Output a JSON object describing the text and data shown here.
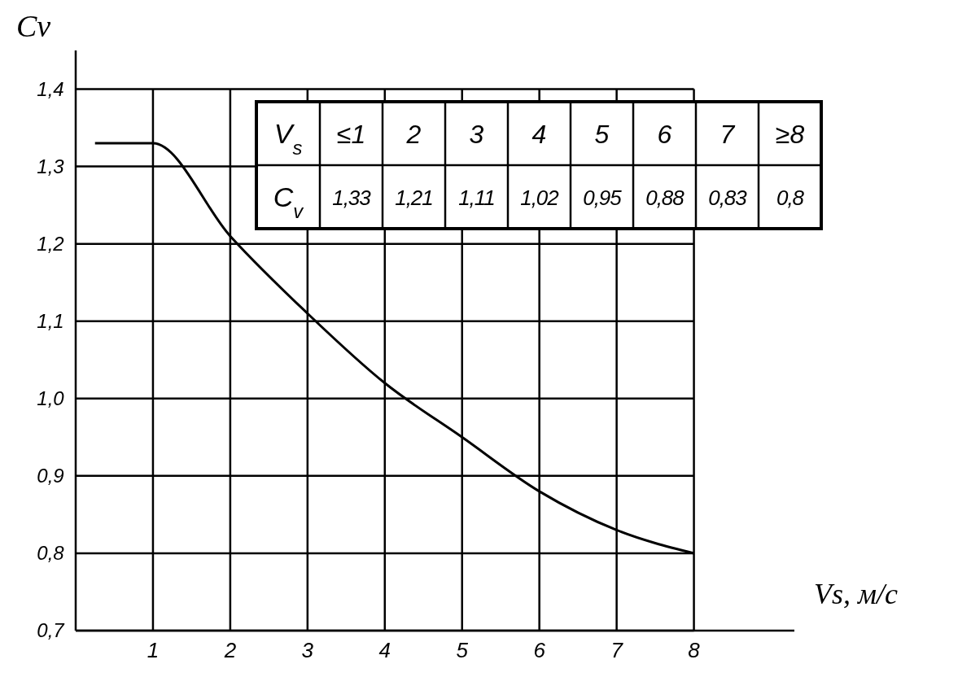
{
  "chart_data": {
    "type": "line",
    "xlabel": "Vs, м/с",
    "ylabel": "Cv",
    "x": [
      0.25,
      1,
      2,
      3,
      4,
      5,
      6,
      7,
      8
    ],
    "series": [
      {
        "color": "#000000",
        "values": [
          1.33,
          1.33,
          1.21,
          1.11,
          1.02,
          0.95,
          0.88,
          0.83,
          0.8
        ]
      }
    ],
    "xlim": [
      0,
      9.3
    ],
    "ylim": [
      0.7,
      1.45
    ],
    "xticks": [
      1,
      2,
      3,
      4,
      5,
      6,
      7,
      8
    ],
    "yticks": [
      {
        "value": 0.7,
        "label": "0,7"
      },
      {
        "value": 0.8,
        "label": "0,8"
      },
      {
        "value": 0.9,
        "label": "0,9"
      },
      {
        "value": 1.0,
        "label": "1,0"
      },
      {
        "value": 1.1,
        "label": "1,1"
      },
      {
        "value": 1.2,
        "label": "1,2"
      },
      {
        "value": 1.3,
        "label": "1,3"
      },
      {
        "value": 1.4,
        "label": "1,4"
      }
    ],
    "grid": true,
    "marker": "none",
    "line_style": "solid",
    "annotations": [
      "V$_{s}$",
      "C$_{v}$",
      "≤1",
      "2",
      "3",
      "4",
      "5",
      "6",
      "7",
      "≥8",
      "1,33",
      "1,21",
      "1,11",
      "1,02",
      "0,95",
      "0,88",
      "0,83",
      "0,8"
    ]
  }
}
